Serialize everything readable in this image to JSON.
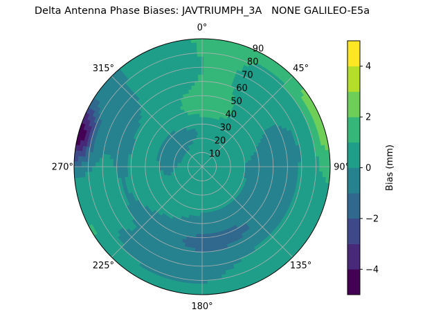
{
  "chart_data": {
    "type": "polar-contour",
    "title": "Delta Antenna Phase Biases: JAVTRIUMPH_3A   NONE GALILEO-E5a",
    "theta_direction": "clockwise",
    "theta_zero": "north",
    "theta_ticks": [
      {
        "deg": 0,
        "label": "0°"
      },
      {
        "deg": 45,
        "label": "45°"
      },
      {
        "deg": 90,
        "label": "90°"
      },
      {
        "deg": 135,
        "label": "135°"
      },
      {
        "deg": 180,
        "label": "180°"
      },
      {
        "deg": 225,
        "label": "225°"
      },
      {
        "deg": 270,
        "label": "270°"
      },
      {
        "deg": 315,
        "label": "315°"
      }
    ],
    "r_range": [
      0,
      90
    ],
    "r_ticks": [
      10,
      20,
      30,
      40,
      50,
      60,
      70,
      80,
      90
    ],
    "r_tick_labels": [
      "10",
      "20",
      "30",
      "40",
      "50",
      "60",
      "70",
      "80",
      "90"
    ],
    "grid": true,
    "colorbar": {
      "label": "Bias (mm)",
      "range": [
        -5,
        5
      ],
      "levels": [
        -5,
        -4,
        -3,
        -2,
        -1,
        0,
        1,
        2,
        3,
        4,
        5
      ],
      "ticks": [
        -4,
        -2,
        0,
        2,
        4
      ],
      "tick_labels": [
        "−4",
        "−2",
        "0",
        "2",
        "4"
      ],
      "colors": [
        "#440154",
        "#482878",
        "#3e4989",
        "#31688e",
        "#26828e",
        "#1f9e89",
        "#35b779",
        "#6ece58",
        "#b5de2b",
        "#fde725"
      ]
    }
  }
}
